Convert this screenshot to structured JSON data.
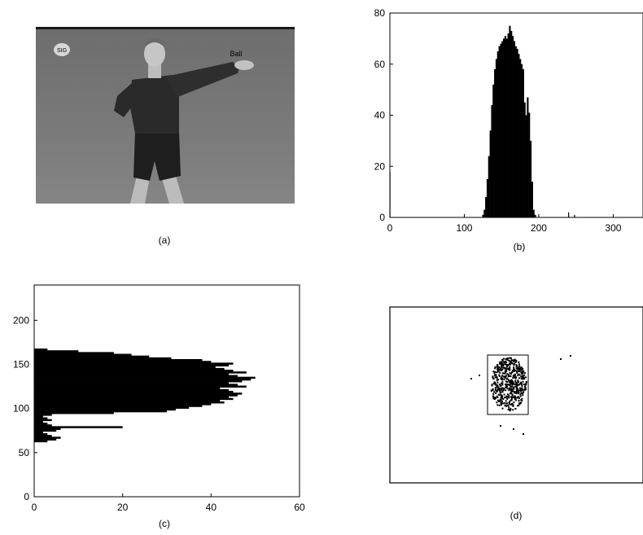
{
  "captions": {
    "a": "(a)",
    "b": "(b)",
    "c": "(c)",
    "d": "(d)"
  },
  "photo": {
    "logo_text": "SIG",
    "overlay_text": "Ball"
  },
  "chart_data": [
    {
      "type": "bar",
      "panel": "b",
      "orientation": "vertical",
      "xlim": [
        0,
        340
      ],
      "ylim": [
        0,
        80
      ],
      "xticks": [
        0,
        100,
        200,
        300
      ],
      "yticks": [
        0,
        20,
        40,
        60,
        80
      ],
      "histogram": {
        "bin_start": 120,
        "bin_step": 2,
        "values": [
          0,
          0,
          1,
          3,
          8,
          15,
          24,
          34,
          44,
          52,
          58,
          62,
          65,
          67,
          68,
          69,
          70,
          71,
          70,
          72,
          75,
          73,
          71,
          69,
          67,
          66,
          64,
          62,
          60,
          58,
          45,
          40,
          47,
          41,
          30,
          14,
          3,
          1,
          0
        ]
      },
      "outliers": [
        [
          0,
          18
        ],
        [
          240,
          2
        ],
        [
          248,
          1
        ]
      ]
    },
    {
      "type": "bar",
      "panel": "c",
      "orientation": "horizontal",
      "xlim": [
        0,
        60
      ],
      "ylim": [
        0,
        240
      ],
      "xticks": [
        0,
        20,
        40,
        60
      ],
      "yticks": [
        0,
        50,
        100,
        150,
        200
      ],
      "histogram": {
        "bin_start": 62,
        "bin_step": 2,
        "values": [
          3,
          5,
          6,
          4,
          3,
          2,
          5,
          6,
          20,
          4,
          3,
          2,
          4,
          3,
          2,
          4,
          18,
          30,
          32,
          35,
          38,
          40,
          43,
          42,
          45,
          44,
          46,
          47,
          45,
          44,
          42,
          48,
          46,
          44,
          47,
          49,
          50,
          46,
          44,
          48,
          45,
          43,
          41,
          44,
          45,
          40,
          38,
          31,
          26,
          22,
          18,
          10,
          3
        ]
      }
    }
  ]
}
